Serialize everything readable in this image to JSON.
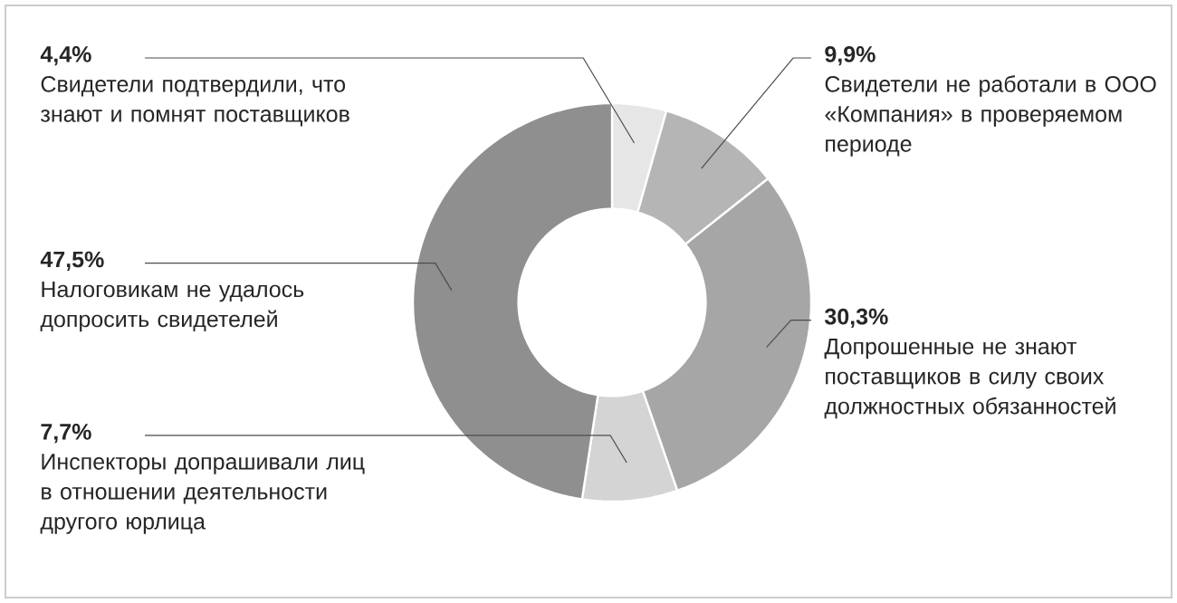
{
  "chart_data": {
    "type": "donut",
    "categories": [
      "Свидетели подтвердили, что знают и помнят поставщиков",
      "Свидетели не работали в ООО «Компания» в проверяемом периоде",
      "Допрошенные не знают поставщиков в силу своих должностных обязанностей",
      "Инспекторы допрашивали лиц в отношении деятельности другого юрлица",
      "Налоговикам не удалось допросить свидетелей"
    ],
    "values": [
      4.4,
      9.9,
      30.3,
      7.7,
      47.5
    ],
    "value_labels": [
      "4,4%",
      "9,9%",
      "30,3%",
      "7,7%",
      "47,5%"
    ],
    "colors": [
      "#e6e6e6",
      "#b5b5b5",
      "#a6a6a6",
      "#d4d4d4",
      "#8f8f8f"
    ]
  }
}
